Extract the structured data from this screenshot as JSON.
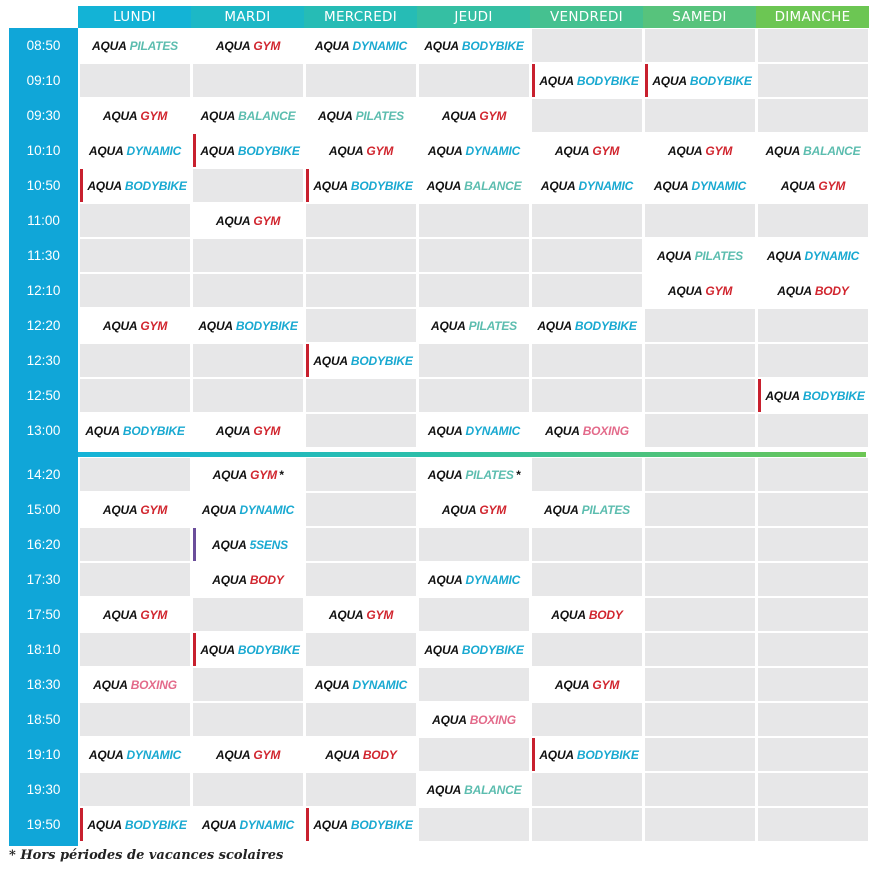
{
  "days": [
    "LUNDI",
    "MARDI",
    "MERCREDI",
    "JEUDI",
    "VENDREDI",
    "SAMEDI",
    "DIMANCHE"
  ],
  "colors": {
    "header": [
      "#13b3d6",
      "#1cb8c6",
      "#26bcb5",
      "#35bfa3",
      "#45c190",
      "#57c37c",
      "#6cc653"
    ],
    "time_column": "#10a6d8",
    "cell_background": "#e7e7e8",
    "class_box": "#ffffff",
    "marker_red": "#c8202e",
    "marker_purple": "#6b4e9b",
    "types": {
      "PILATES": "#5cbdaf",
      "GYM": "#d1262f",
      "DYNAMIC": "#19a9d1",
      "BODYBIKE": "#19a9d1",
      "BALANCE": "#5cbdaf",
      "BODY": "#d1262f",
      "BOXING": "#e36a8a",
      "5SENS": "#19a9d1"
    }
  },
  "rows": [
    {
      "time": "08:50",
      "classes": [
        {
          "day": 0,
          "prefix": "AQUA",
          "type": "PILATES"
        },
        {
          "day": 1,
          "prefix": "AQUA",
          "type": "GYM"
        },
        {
          "day": 2,
          "prefix": "AQUA",
          "type": "DYNAMIC"
        },
        {
          "day": 3,
          "prefix": "AQUA",
          "type": "BODYBIKE"
        }
      ]
    },
    {
      "time": "09:10",
      "classes": [
        {
          "day": 4,
          "prefix": "AQUA",
          "type": "BODYBIKE",
          "marker": "red"
        },
        {
          "day": 5,
          "prefix": "AQUA",
          "type": "BODYBIKE",
          "marker": "red"
        }
      ]
    },
    {
      "time": "09:30",
      "classes": [
        {
          "day": 0,
          "prefix": "AQUA",
          "type": "GYM"
        },
        {
          "day": 1,
          "prefix": "AQUA",
          "type": "BALANCE"
        },
        {
          "day": 2,
          "prefix": "AQUA",
          "type": "PILATES"
        },
        {
          "day": 3,
          "prefix": "AQUA",
          "type": "GYM"
        }
      ]
    },
    {
      "time": "10:10",
      "classes": [
        {
          "day": 0,
          "prefix": "AQUA",
          "type": "DYNAMIC"
        },
        {
          "day": 1,
          "prefix": "AQUA",
          "type": "BODYBIKE",
          "marker": "red"
        },
        {
          "day": 2,
          "prefix": "AQUA",
          "type": "GYM"
        },
        {
          "day": 3,
          "prefix": "AQUA",
          "type": "DYNAMIC"
        },
        {
          "day": 4,
          "prefix": "AQUA",
          "type": "GYM"
        },
        {
          "day": 5,
          "prefix": "AQUA",
          "type": "GYM"
        },
        {
          "day": 6,
          "prefix": "AQUA",
          "type": "BALANCE"
        }
      ]
    },
    {
      "time": "10:50",
      "classes": [
        {
          "day": 0,
          "prefix": "AQUA",
          "type": "BODYBIKE",
          "marker": "red"
        },
        {
          "day": 2,
          "prefix": "AQUA",
          "type": "BODYBIKE",
          "marker": "red"
        },
        {
          "day": 3,
          "prefix": "AQUA",
          "type": "BALANCE"
        },
        {
          "day": 4,
          "prefix": "AQUA",
          "type": "DYNAMIC"
        },
        {
          "day": 5,
          "prefix": "AQUA",
          "type": "DYNAMIC"
        },
        {
          "day": 6,
          "prefix": "AQUA",
          "type": "GYM"
        }
      ]
    },
    {
      "time": "11:00",
      "classes": [
        {
          "day": 1,
          "prefix": "AQUA",
          "type": "GYM"
        }
      ]
    },
    {
      "time": "11:30",
      "classes": [
        {
          "day": 5,
          "prefix": "AQUA",
          "type": "PILATES"
        },
        {
          "day": 6,
          "prefix": "AQUA",
          "type": "DYNAMIC"
        }
      ]
    },
    {
      "time": "12:10",
      "classes": [
        {
          "day": 5,
          "prefix": "AQUA",
          "type": "GYM"
        },
        {
          "day": 6,
          "prefix": "AQUA",
          "type": "BODY"
        }
      ]
    },
    {
      "time": "12:20",
      "classes": [
        {
          "day": 0,
          "prefix": "AQUA",
          "type": "GYM"
        },
        {
          "day": 1,
          "prefix": "AQUA",
          "type": "BODYBIKE"
        },
        {
          "day": 3,
          "prefix": "AQUA",
          "type": "PILATES"
        },
        {
          "day": 4,
          "prefix": "AQUA",
          "type": "BODYBIKE"
        }
      ]
    },
    {
      "time": "12:30",
      "classes": [
        {
          "day": 2,
          "prefix": "AQUA",
          "type": "BODYBIKE",
          "marker": "red"
        }
      ]
    },
    {
      "time": "12:50",
      "classes": [
        {
          "day": 6,
          "prefix": "AQUA",
          "type": "BODYBIKE",
          "marker": "red"
        }
      ]
    },
    {
      "time": "13:00",
      "classes": [
        {
          "day": 0,
          "prefix": "AQUA",
          "type": "BODYBIKE"
        },
        {
          "day": 1,
          "prefix": "AQUA",
          "type": "GYM"
        },
        {
          "day": 3,
          "prefix": "AQUA",
          "type": "DYNAMIC"
        },
        {
          "day": 4,
          "prefix": "AQUA",
          "type": "BOXING"
        }
      ]
    },
    {
      "time": "14:20",
      "classes": [
        {
          "day": 1,
          "prefix": "AQUA",
          "type": "GYM",
          "suffix": "*"
        },
        {
          "day": 3,
          "prefix": "AQUA",
          "type": "PILATES",
          "suffix": "*"
        }
      ]
    },
    {
      "time": "15:00",
      "classes": [
        {
          "day": 0,
          "prefix": "AQUA",
          "type": "GYM"
        },
        {
          "day": 1,
          "prefix": "AQUA",
          "type": "DYNAMIC"
        },
        {
          "day": 3,
          "prefix": "AQUA",
          "type": "GYM"
        },
        {
          "day": 4,
          "prefix": "AQUA",
          "type": "PILATES"
        }
      ]
    },
    {
      "time": "16:20",
      "classes": [
        {
          "day": 1,
          "prefix": "AQUA",
          "type": "5SENS",
          "marker": "purple"
        }
      ]
    },
    {
      "time": "17:30",
      "classes": [
        {
          "day": 1,
          "prefix": "AQUA",
          "type": "BODY"
        },
        {
          "day": 3,
          "prefix": "AQUA",
          "type": "DYNAMIC"
        }
      ]
    },
    {
      "time": "17:50",
      "classes": [
        {
          "day": 0,
          "prefix": "AQUA",
          "type": "GYM"
        },
        {
          "day": 2,
          "prefix": "AQUA",
          "type": "GYM"
        },
        {
          "day": 4,
          "prefix": "AQUA",
          "type": "BODY"
        }
      ]
    },
    {
      "time": "18:10",
      "classes": [
        {
          "day": 1,
          "prefix": "AQUA",
          "type": "BODYBIKE",
          "marker": "red"
        },
        {
          "day": 3,
          "prefix": "AQUA",
          "type": "BODYBIKE"
        }
      ]
    },
    {
      "time": "18:30",
      "classes": [
        {
          "day": 0,
          "prefix": "AQUA",
          "type": "BOXING"
        },
        {
          "day": 2,
          "prefix": "AQUA",
          "type": "DYNAMIC"
        },
        {
          "day": 4,
          "prefix": "AQUA",
          "type": "GYM"
        }
      ]
    },
    {
      "time": "18:50",
      "classes": [
        {
          "day": 3,
          "prefix": "AQUA",
          "type": "BOXING"
        }
      ]
    },
    {
      "time": "19:10",
      "classes": [
        {
          "day": 0,
          "prefix": "AQUA",
          "type": "DYNAMIC"
        },
        {
          "day": 1,
          "prefix": "AQUA",
          "type": "GYM"
        },
        {
          "day": 2,
          "prefix": "AQUA",
          "type": "BODY"
        },
        {
          "day": 4,
          "prefix": "AQUA",
          "type": "BODYBIKE",
          "marker": "red"
        }
      ]
    },
    {
      "time": "19:30",
      "classes": [
        {
          "day": 3,
          "prefix": "AQUA",
          "type": "BALANCE"
        }
      ]
    },
    {
      "time": "19:50",
      "classes": [
        {
          "day": 0,
          "prefix": "AQUA",
          "type": "BODYBIKE",
          "marker": "red"
        },
        {
          "day": 1,
          "prefix": "AQUA",
          "type": "DYNAMIC"
        },
        {
          "day": 2,
          "prefix": "AQUA",
          "type": "BODYBIKE",
          "marker": "red"
        }
      ]
    }
  ],
  "footnote": "* Hors périodes de vacances scolaires"
}
